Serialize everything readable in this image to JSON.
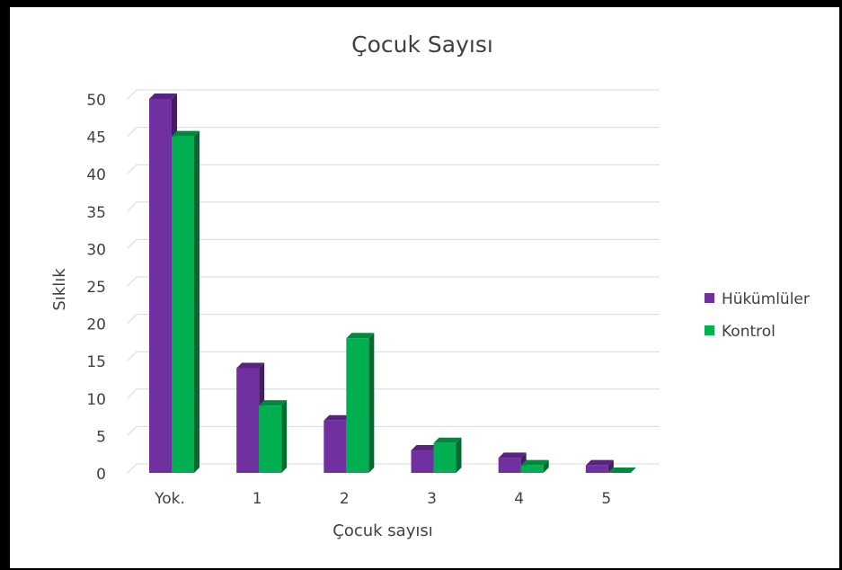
{
  "chart_data": {
    "type": "bar",
    "title": "Çocuk Sayısı",
    "xlabel": "Çocuk sayısı",
    "ylabel": "Sıklık",
    "categories": [
      "Yok.",
      "1",
      "2",
      "3",
      "4",
      "5"
    ],
    "series": [
      {
        "name": "Hükümlüler",
        "color": "#7030a0",
        "values": [
          50,
          14,
          7,
          3,
          2,
          1
        ]
      },
      {
        "name": "Kontrol",
        "color": "#00b050",
        "values": [
          45,
          9,
          18,
          4,
          1,
          0
        ]
      }
    ],
    "ylim": [
      0,
      50
    ],
    "yticks": [
      "0",
      "5",
      "10",
      "15",
      "20",
      "25",
      "30",
      "35",
      "40",
      "45",
      "50"
    ],
    "grid": true,
    "legend_position": "right",
    "style": "3d-clustered-column"
  }
}
